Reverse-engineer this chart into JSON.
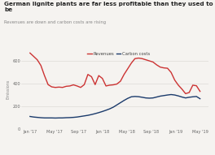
{
  "title": "German lignite plants are far less profitable than they used to be",
  "subtitle": "Revenues are down and carbon costs are rising",
  "legend_labels": [
    "Revenues",
    "Carbon costs"
  ],
  "legend_colors": [
    "#cc3333",
    "#1a3a6b"
  ],
  "bg_color": "#f5f3f0",
  "plot_bg_color": "#f5f3f0",
  "ylim": [
    0,
    700
  ],
  "yticks": [
    0,
    200,
    400,
    600
  ],
  "x_labels": [
    "Jan '17",
    "May '17",
    "Sep '17",
    "Jan '18",
    "May '18",
    "Sep '18",
    "Jan '19",
    "May '19"
  ],
  "revenues": [
    670,
    640,
    610,
    560,
    470,
    390,
    370,
    365,
    368,
    365,
    375,
    378,
    388,
    378,
    365,
    390,
    480,
    460,
    390,
    470,
    445,
    378,
    385,
    388,
    395,
    420,
    480,
    530,
    580,
    620,
    625,
    620,
    610,
    600,
    590,
    565,
    545,
    538,
    535,
    498,
    430,
    385,
    350,
    310,
    320,
    385,
    380,
    330
  ],
  "carbon_costs": [
    108,
    103,
    100,
    97,
    95,
    95,
    95,
    94,
    95,
    95,
    97,
    98,
    100,
    103,
    108,
    113,
    118,
    125,
    133,
    142,
    152,
    163,
    175,
    190,
    210,
    230,
    250,
    268,
    282,
    285,
    283,
    278,
    272,
    270,
    272,
    280,
    288,
    293,
    298,
    302,
    298,
    290,
    280,
    272,
    278,
    282,
    285,
    265
  ],
  "line_width": 1.0,
  "title_fontsize": 5.2,
  "subtitle_fontsize": 3.8,
  "tick_fontsize": 3.6,
  "legend_fontsize": 3.8,
  "ylabel": "Emissions",
  "ylabel_fontsize": 3.5
}
